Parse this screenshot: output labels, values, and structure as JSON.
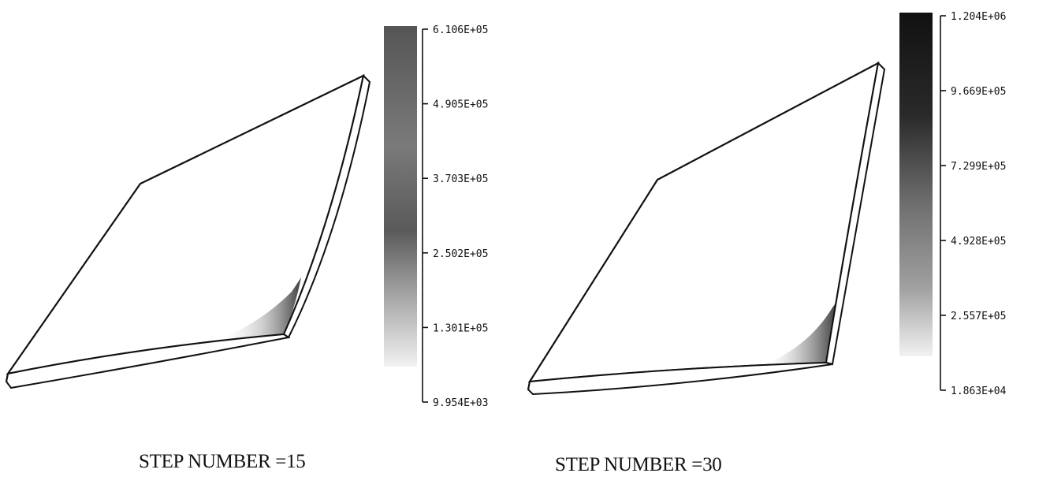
{
  "panels": [
    {
      "caption": "STEP NUMBER  =15",
      "colorbar": {
        "ticks": [
          "6.106E+05",
          "4.905E+05",
          "3.703E+05",
          "2.502E+05",
          "1.301E+05",
          "9.954E+03"
        ],
        "top_color": "#333333",
        "bottom_color": "#f2f2f2"
      }
    },
    {
      "caption": "STEP NUMBER =30",
      "colorbar": {
        "ticks": [
          "1.204E+06",
          "9.669E+05",
          "7.299E+05",
          "4.928E+05",
          "2.557E+05",
          "1.863E+04"
        ],
        "top_color": "#111111",
        "bottom_color": "#f2f2f2"
      }
    }
  ]
}
